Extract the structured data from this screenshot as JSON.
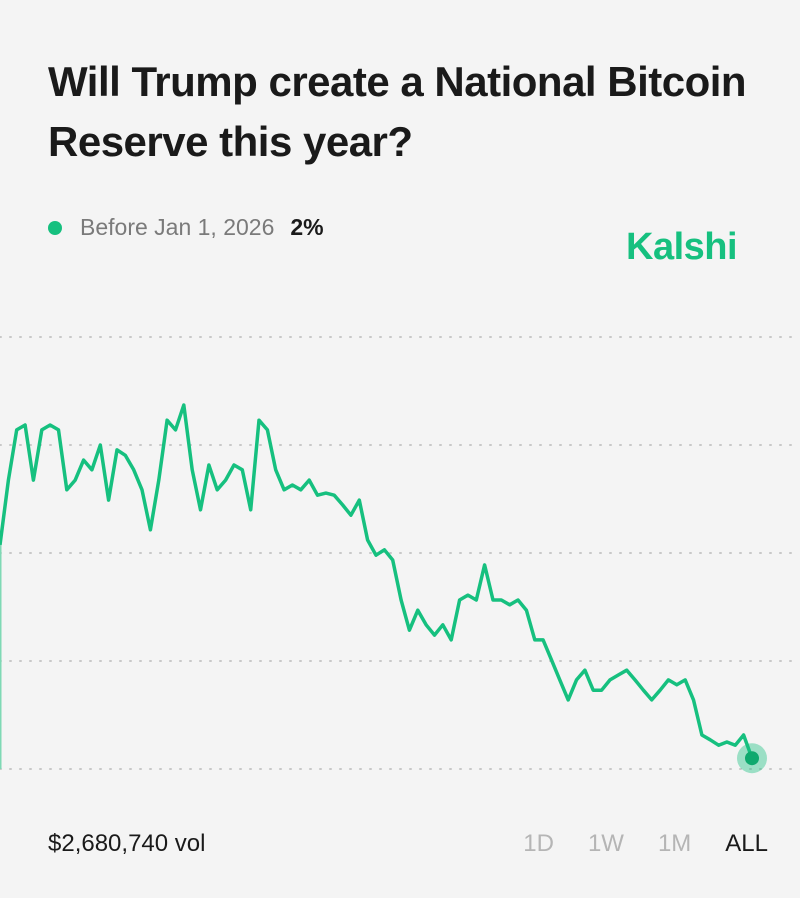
{
  "header": {
    "title": "Will Trump create a National Bitcoin Reserve this year?"
  },
  "legend": {
    "label": "Before Jan 1, 2026",
    "value": "2%"
  },
  "brand": {
    "logo_text": "Kalshi",
    "color": "#16c07f"
  },
  "footer": {
    "volume": "$2,680,740 vol",
    "ranges": [
      "1D",
      "1W",
      "1M",
      "ALL"
    ],
    "selected_range": "ALL"
  },
  "chart_data": {
    "type": "line",
    "title": "",
    "xlabel": "",
    "ylabel": "",
    "ylim": [
      0,
      80
    ],
    "grid": true,
    "gridlines": [
      0,
      20,
      40,
      60,
      80
    ],
    "color": "#16c07f",
    "series": [
      {
        "values": [
          41.5,
          53.5,
          62.8,
          63.7,
          53.5,
          62.8,
          63.7,
          62.8,
          51.7,
          53.5,
          57.2,
          55.4,
          60,
          49.8,
          59.1,
          58.1,
          55.4,
          51.7,
          44.3,
          53.5,
          64.6,
          62.8,
          67.4,
          55.4,
          48,
          56.3,
          51.7,
          53.5,
          56.3,
          55.4,
          48,
          64.6,
          62.8,
          55.4,
          51.7,
          52.6,
          51.7,
          53.5,
          50.7,
          51.1,
          50.7,
          48.9,
          47,
          49.8,
          42.4,
          39.6,
          40.6,
          38.7,
          31.3,
          25.7,
          29.4,
          26.7,
          24.8,
          26.7,
          23.9,
          31.3,
          32.2,
          31.3,
          37.8,
          31.3,
          31.3,
          30.4,
          31.3,
          29.4,
          23.9,
          23.9,
          20.2,
          16.5,
          12.8,
          16.5,
          18.3,
          14.6,
          14.6,
          16.5,
          17.4,
          18.3,
          16.5,
          14.6,
          12.8,
          14.6,
          16.5,
          15.6,
          16.5,
          12.8,
          6.3,
          5.4,
          4.4,
          5,
          4.4,
          6.3,
          2
        ]
      }
    ]
  }
}
